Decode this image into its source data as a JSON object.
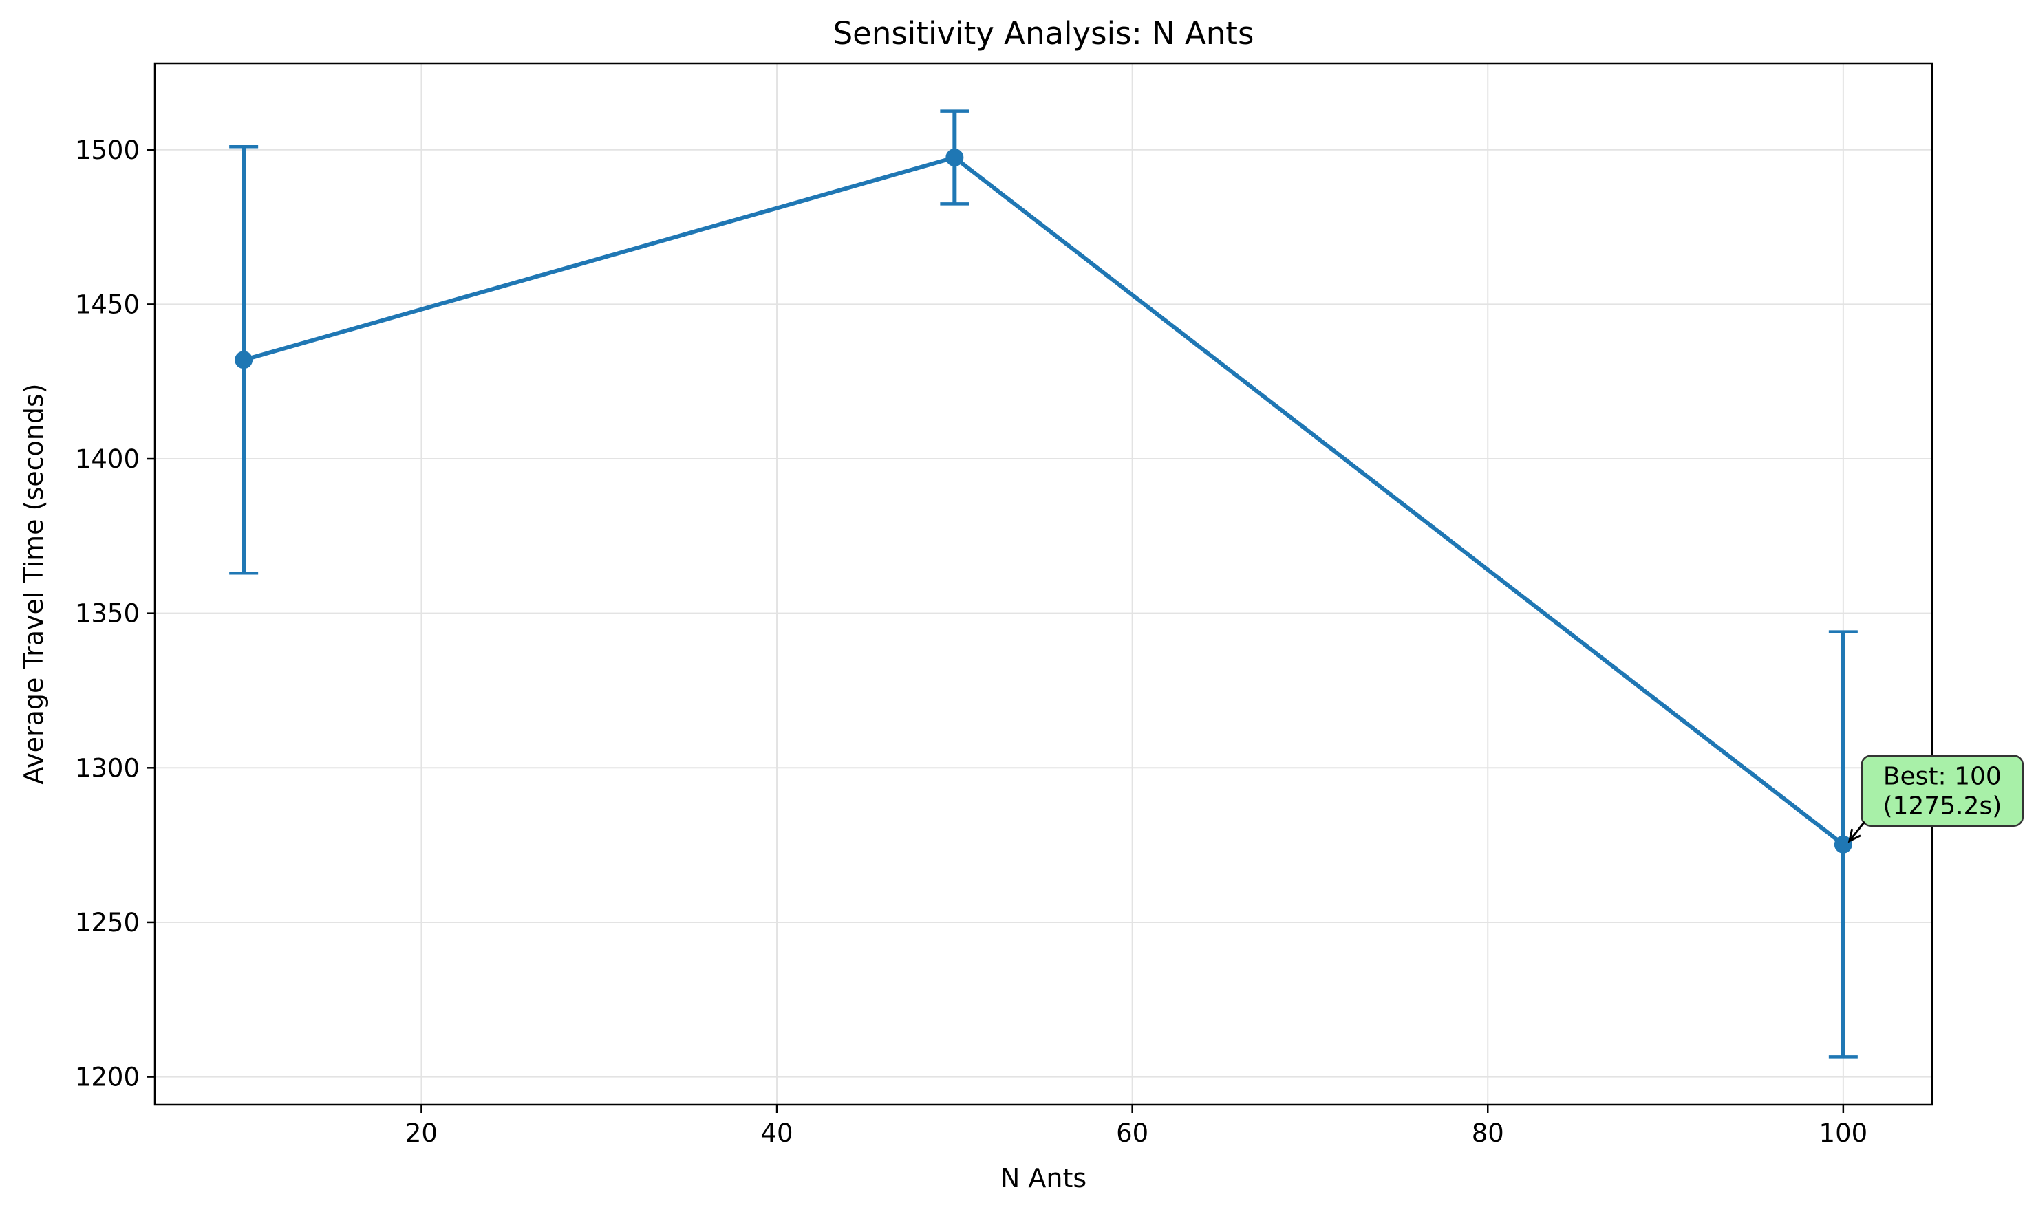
{
  "chart_data": {
    "type": "line",
    "title": "Sensitivity Analysis: N Ants",
    "xlabel": "N Ants",
    "ylabel": "Average Travel Time (seconds)",
    "xlim": [
      5,
      105
    ],
    "ylim": [
      1191,
      1528
    ],
    "xticks": [
      20,
      40,
      60,
      80,
      100
    ],
    "yticks": [
      1200,
      1250,
      1300,
      1350,
      1400,
      1450,
      1500
    ],
    "grid": true,
    "series": [
      {
        "x": [
          10,
          50,
          100
        ],
        "y": [
          1432,
          1497.5,
          1275.2
        ],
        "err_low": [
          1363,
          1482.5,
          1206.5
        ],
        "err_high": [
          1501,
          1512.5,
          1344
        ],
        "color": "#1f77b4"
      }
    ],
    "annotation": {
      "lines": [
        "Best: 100",
        "(1275.2s)"
      ],
      "target_x": 100,
      "target_y": 1275.2,
      "box_color": "#a8f0a8"
    }
  }
}
